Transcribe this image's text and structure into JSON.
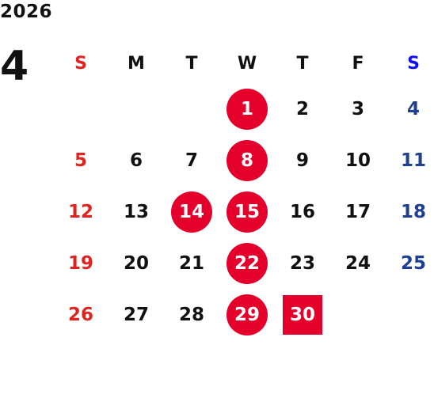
{
  "year": "2026",
  "month": "4",
  "weekdays": [
    "S",
    "M",
    "T",
    "W",
    "T",
    "F",
    "S"
  ],
  "weeks": [
    [
      "",
      "",
      "",
      "1",
      "2",
      "3",
      "4"
    ],
    [
      "5",
      "6",
      "7",
      "8",
      "9",
      "10",
      "11"
    ],
    [
      "12",
      "13",
      "14",
      "15",
      "16",
      "17",
      "18"
    ],
    [
      "19",
      "20",
      "21",
      "22",
      "23",
      "24",
      "25"
    ],
    [
      "26",
      "27",
      "28",
      "29",
      "30",
      "",
      ""
    ]
  ],
  "highlight_circle_days": [
    "1",
    "8",
    "14",
    "15",
    "22",
    "29"
  ],
  "highlight_square_days": [
    "30"
  ],
  "colors": {
    "sunday": "#e0231f",
    "saturday": "#1f3f93",
    "highlight": "#e4002b"
  }
}
